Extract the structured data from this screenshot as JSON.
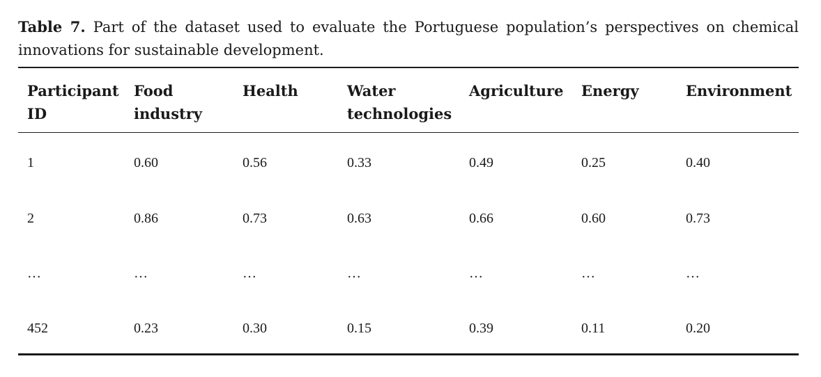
{
  "caption": {
    "label": "Table 7.",
    "text": "Part of the dataset used to evaluate the Portuguese population’s perspectives on chemical innovations for sustainable development."
  },
  "table": {
    "headers": [
      [
        "Participant",
        "ID"
      ],
      [
        "Food",
        "industry"
      ],
      [
        "Health"
      ],
      [
        "Water",
        "technologies"
      ],
      [
        "Agriculture"
      ],
      [
        "Energy"
      ],
      [
        "Environment"
      ]
    ],
    "rows": [
      [
        "1",
        "0.60",
        "0.56",
        "0.33",
        "0.49",
        "0.25",
        "0.40"
      ],
      [
        "2",
        "0.86",
        "0.73",
        "0.63",
        "0.66",
        "0.60",
        "0.73"
      ],
      [
        "…",
        "…",
        "…",
        "…",
        "…",
        "…",
        "…"
      ],
      [
        "452",
        "0.23",
        "0.30",
        "0.15",
        "0.39",
        "0.11",
        "0.20"
      ]
    ]
  }
}
